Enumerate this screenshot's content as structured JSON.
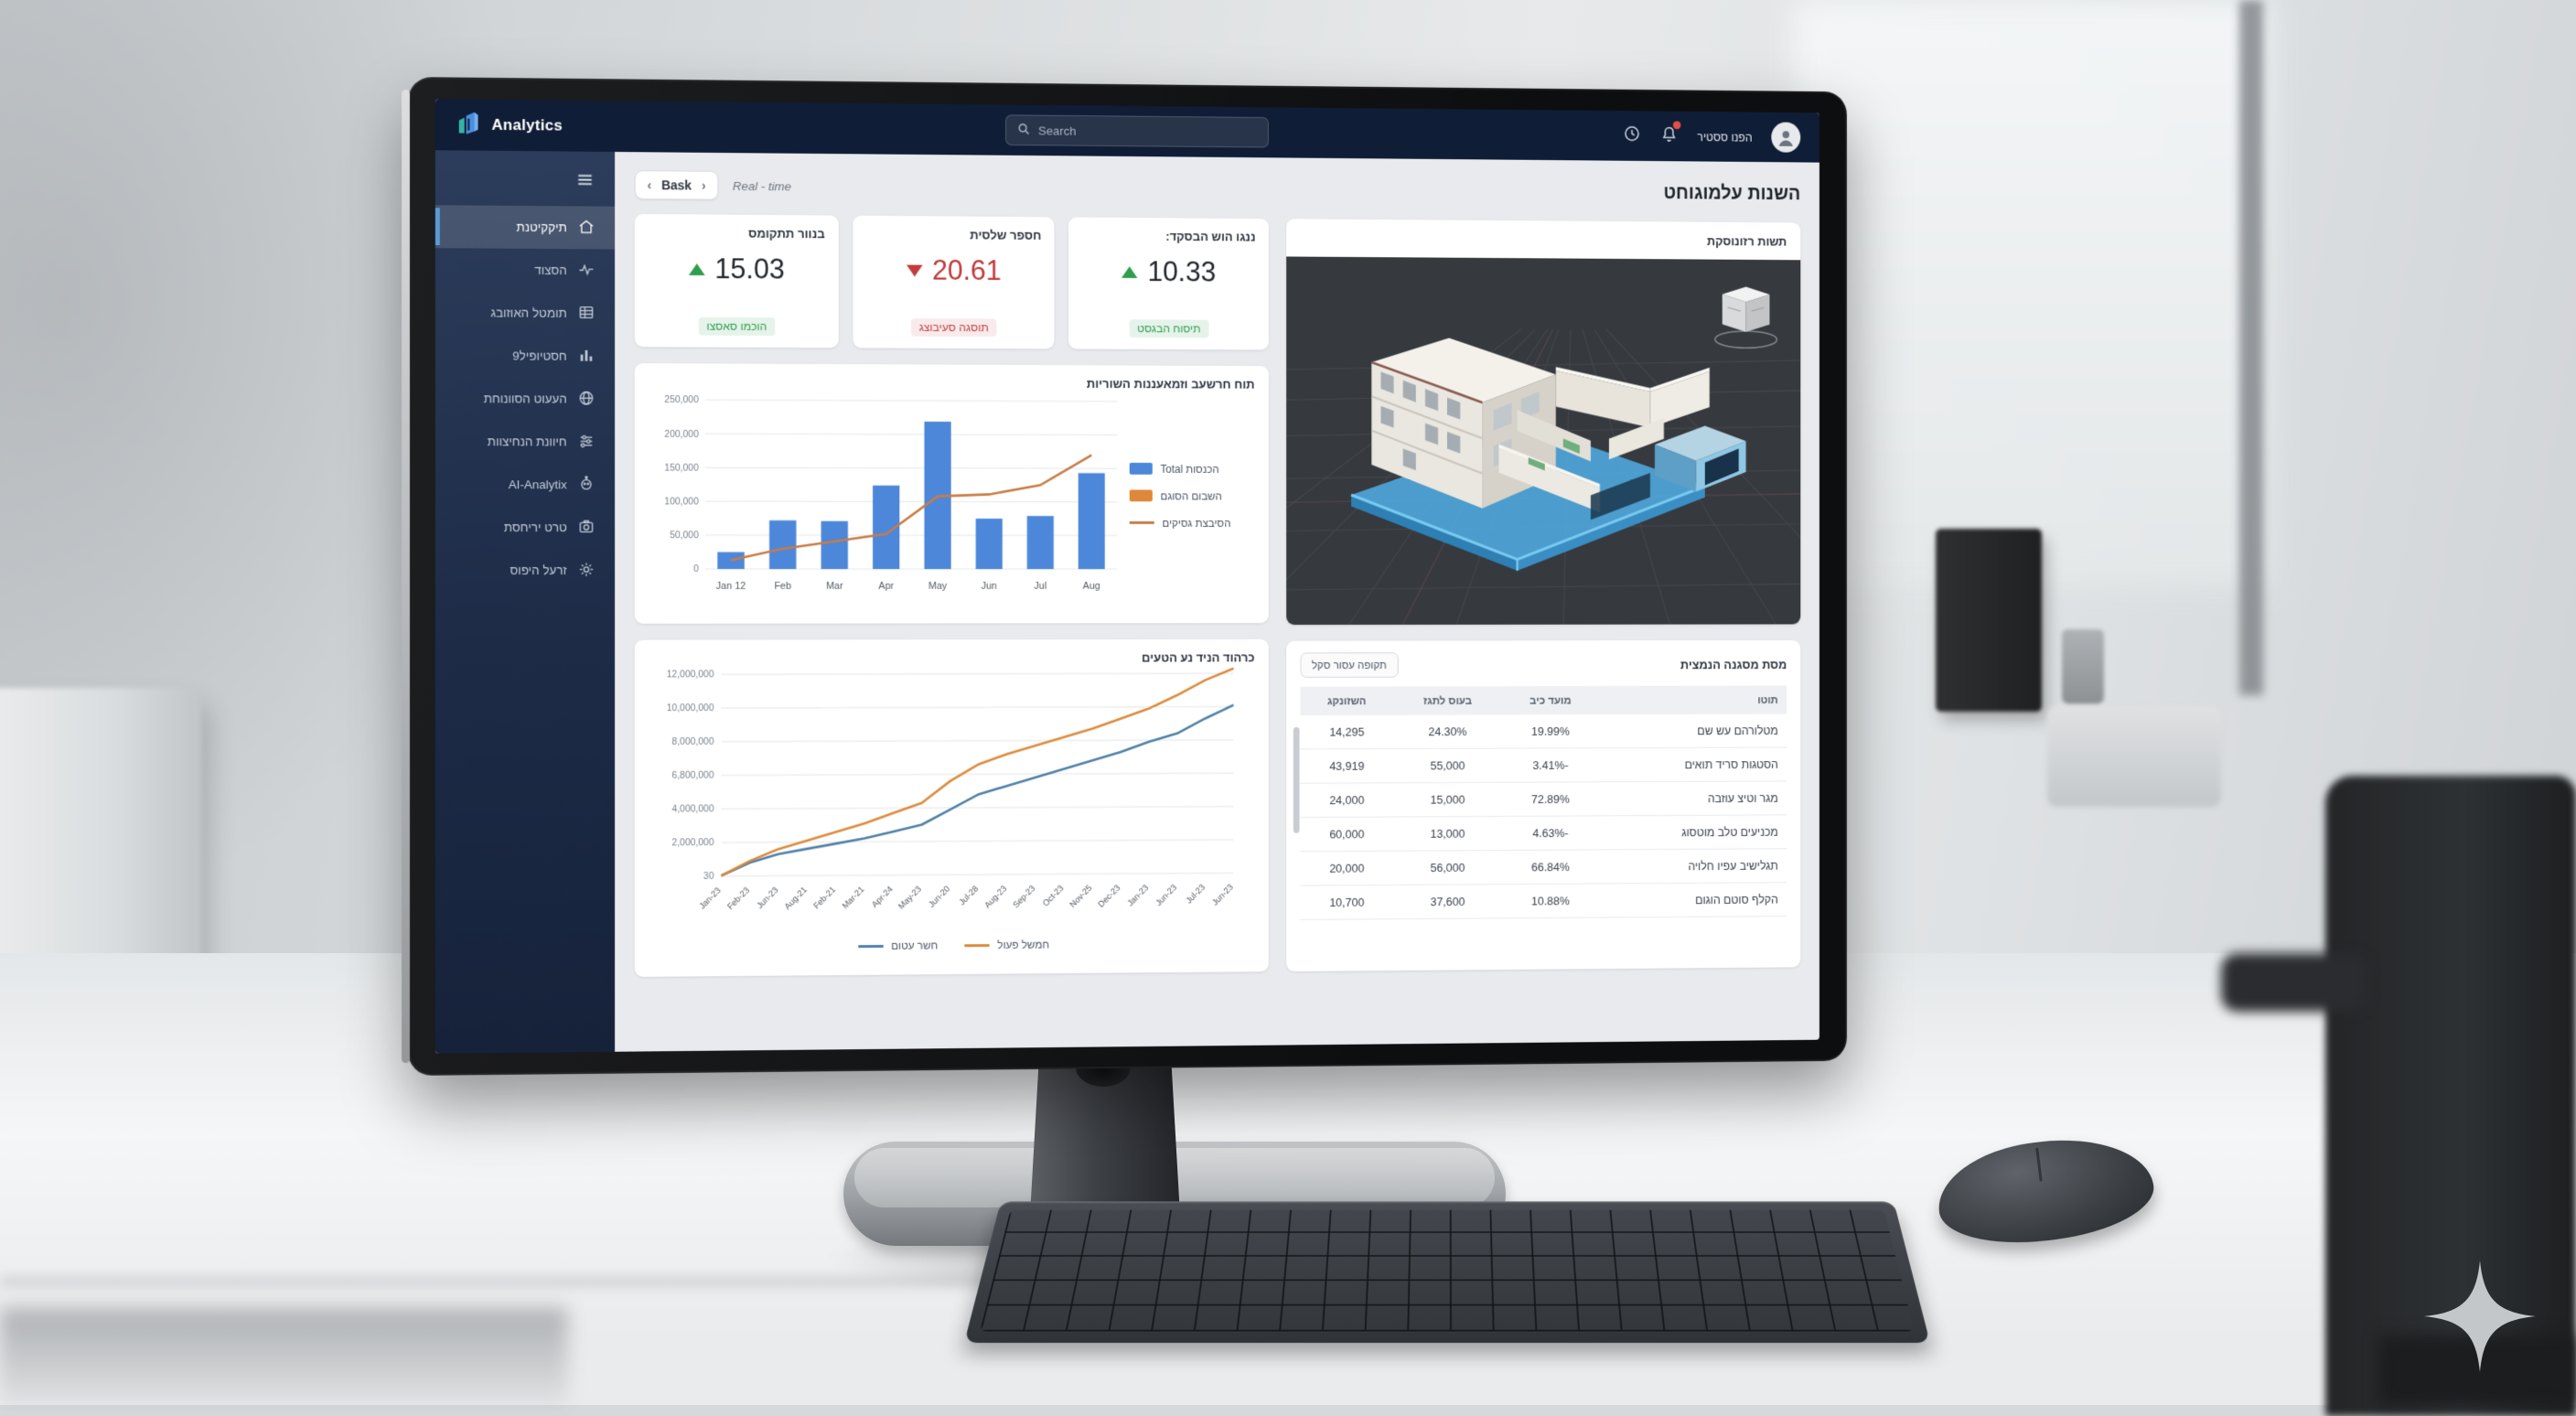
{
  "app": {
    "brand": "Analytics",
    "search_placeholder": "Search",
    "user_label": "הפנו ססטיר"
  },
  "colors": {
    "accent": "#4a90e2",
    "positive": "#2f9e4f",
    "negative": "#c43d3d",
    "bar_blue": "#4d87d9",
    "overlay_orange": "#c87c45",
    "line_orange": "#dd8a3c",
    "line_blue": "#4f81a8",
    "notification_dot": "#e0504b"
  },
  "sidebar": {
    "active_index": 0,
    "items": [
      {
        "label": "תיקקיטנת",
        "icon": "home-icon"
      },
      {
        "label": "הסצוד",
        "icon": "activity-icon"
      },
      {
        "label": "תומטל האוזובג",
        "icon": "table-icon"
      },
      {
        "label": "חסטיופיל9",
        "icon": "bar-chart-icon"
      },
      {
        "label": "העעוט הסוונוחת",
        "icon": "globe-icon"
      },
      {
        "label": "חיוונת הנחיצוות",
        "icon": "sliders-icon"
      },
      {
        "label": "AI-Analytix",
        "icon": "bot-icon"
      },
      {
        "label": "טרט יריחסת",
        "icon": "camera-icon"
      },
      {
        "label": "זרעל היפוס",
        "icon": "gear-icon"
      }
    ]
  },
  "header": {
    "back_label": "Bask",
    "current": "Real - time",
    "page_title": "השנות עלמוגוחט"
  },
  "kpis": [
    {
      "title": "בנוור תתקומס",
      "value": "15.03",
      "trend": "up",
      "note": "הוכמו סאסצו"
    },
    {
      "title": "חספר שלסית",
      "value": "20.61",
      "trend": "down",
      "note": "תוסגה סעיבוצג"
    },
    {
      "title": "ננגו הוש הבסקד:",
      "value": "10.33",
      "trend": "up",
      "note": "תיסוח הבגסט"
    }
  ],
  "chart_data": [
    {
      "type": "bar",
      "title": "תוח חרשעב וזמאעננות השוריות",
      "categories": [
        "Jan 12",
        "Feb",
        "Mar",
        "Apr",
        "May",
        "Jun",
        "Jul",
        "Aug"
      ],
      "ylim": [
        0,
        250000
      ],
      "yticks": [
        0,
        50000,
        100000,
        150000,
        200000,
        250000
      ],
      "grid": true,
      "legend_position": "right",
      "series": [
        {
          "name": "הכנסות Total",
          "kind": "bar",
          "color": "#4d87d9",
          "values": [
            25000,
            72000,
            71000,
            124000,
            219000,
            75000,
            79000,
            143000
          ]
        },
        {
          "name": "השבום הסוגם",
          "kind": "square",
          "color": "#e0883a",
          "values": []
        },
        {
          "name": "הסיבצת גסיקים",
          "kind": "line",
          "color": "#c87c45",
          "values": [
            13000,
            30000,
            41000,
            52000,
            108000,
            111000,
            125000,
            170000
          ]
        }
      ]
    },
    {
      "type": "line",
      "title": "כרהוד הניד נע הטעים",
      "x": [
        "Jan-23",
        "Feb-23",
        "Jun-23",
        "Aug-21",
        "Feb-21",
        "Mar-21",
        "Apr-24",
        "May-23",
        "Jun-20",
        "Jul-28",
        "Aug-23",
        "Sep-23",
        "Oct-23",
        "Nov-25",
        "Dec-23",
        "Jan-23",
        "Jun-23",
        "Jul-23",
        "Jun-23"
      ],
      "ylim": [
        0,
        12000000
      ],
      "ytick_labels": [
        "30",
        "2,000,000",
        "4,000,000",
        "6,800,000",
        "8,000,000",
        "10,000,000",
        "12,000,000"
      ],
      "grid": true,
      "legend_position": "bottom",
      "series": [
        {
          "name": "חשר עטום",
          "color": "#4f81a8",
          "values": [
            30000,
            800000,
            1300000,
            1600000,
            1900000,
            2200000,
            2600000,
            3000000,
            3900000,
            4800000,
            5300000,
            5800000,
            6300000,
            6800000,
            7300000,
            7900000,
            8400000,
            9300000,
            10100000
          ]
        },
        {
          "name": "חמשל פעול",
          "color": "#dd8a3c",
          "values": [
            30000,
            900000,
            1600000,
            2100000,
            2600000,
            3100000,
            3700000,
            4300000,
            5600000,
            6600000,
            7200000,
            7700000,
            8200000,
            8700000,
            9300000,
            9900000,
            10700000,
            11600000,
            12300000
          ]
        }
      ]
    }
  ],
  "model_panel": {
    "title": "תשות רזונוסקת"
  },
  "table_panel": {
    "title": "מסת מסגנה הנמצית",
    "filter_button": "תקופה עסור סקל",
    "columns": [
      "תוטו",
      "מועד כיב",
      "בעוס לתגז",
      "השזונקג"
    ],
    "rows": [
      {
        "name": "מטלורהם עש שם",
        "pct": "19.99%",
        "amount": "24.30%",
        "total": "14,295",
        "total_negative": true
      },
      {
        "name": "הסטגות סריד תואים",
        "pct": "-3.41%",
        "amount": "55,000",
        "total": "43,919",
        "total_negative": false
      },
      {
        "name": "מגר וטיצ עוזבה",
        "pct": "72.89%",
        "amount": "15,000",
        "total": "24,000",
        "total_negative": false
      },
      {
        "name": "מכניעים טלב מוטסוג",
        "pct": "-4.63%",
        "amount": "13,000",
        "total": "60,000",
        "total_negative": false
      },
      {
        "name": "תגלישיב עפיו חלויה",
        "pct": "66.84%",
        "amount": "56,000",
        "total": "20,000",
        "total_negative": false
      },
      {
        "name": "הקלף סוטם הוגום",
        "pct": "10.88%",
        "amount": "37,600",
        "total": "10,700",
        "total_negative": false
      }
    ]
  }
}
